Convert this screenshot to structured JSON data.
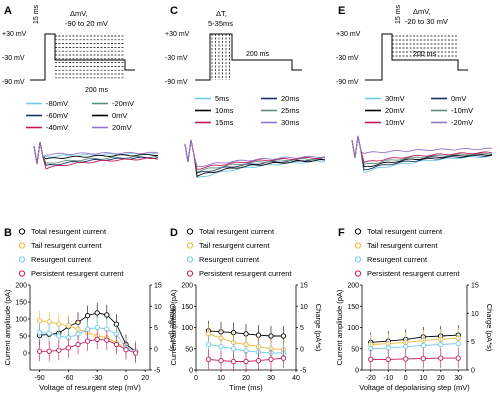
{
  "panels": {
    "A": {
      "letter": "A",
      "protocol": {
        "levels": [
          "+30 mV",
          "-30 mV",
          "-90 mV"
        ],
        "step_label": "15 ms",
        "delta_label": "ΔmV,",
        "range_label": "-90 to 20 mV",
        "duration_label": "200 ms"
      },
      "legend": [
        {
          "label": "-80mV",
          "color": "#6ecbe8"
        },
        {
          "label": "-20mV",
          "color": "#5a8f7b"
        },
        {
          "label": "-60mV",
          "color": "#1c2f6b"
        },
        {
          "label": "0mV",
          "color": "#000000"
        },
        {
          "label": "-40mV",
          "color": "#c2185b"
        },
        {
          "label": "20mV",
          "color": "#9575cd"
        }
      ]
    },
    "C": {
      "letter": "C",
      "protocol": {
        "levels": [
          "+30 mV",
          "-30 mV",
          "-90 mV"
        ],
        "delta_label": "ΔT,",
        "range_label": "5-35ms",
        "duration_label": "200 ms"
      },
      "legend": [
        {
          "label": "5ms",
          "color": "#6ecbe8"
        },
        {
          "label": "20ms",
          "color": "#1c2f6b"
        },
        {
          "label": "10ms",
          "color": "#000000"
        },
        {
          "label": "25ms",
          "color": "#5a8f7b"
        },
        {
          "label": "15ms",
          "color": "#c2185b"
        },
        {
          "label": "30ms",
          "color": "#9575cd"
        }
      ]
    },
    "E": {
      "letter": "E",
      "protocol": {
        "levels": [
          "+30 mV",
          "-30 mV",
          "-90 mV"
        ],
        "step_label": "15 ms",
        "delta_label": "ΔmV,",
        "range_label": "-20 to 30 mV",
        "duration_label": "200 ms"
      },
      "legend": [
        {
          "label": "30mV",
          "color": "#6ecbe8"
        },
        {
          "label": "0mV",
          "color": "#1c2f6b"
        },
        {
          "label": "20mV",
          "color": "#000000"
        },
        {
          "label": "-10mV",
          "color": "#5a8f7b"
        },
        {
          "label": "10mV",
          "color": "#c2185b"
        },
        {
          "label": "-20mV",
          "color": "#9575cd"
        }
      ]
    },
    "B": {
      "letter": "B"
    },
    "D": {
      "letter": "D"
    },
    "F": {
      "letter": "F"
    }
  },
  "legend_bottom": [
    {
      "label": "Total resurgent current",
      "color": "#000000"
    },
    {
      "label": "Tail resurgent current",
      "color": "#f2b632"
    },
    {
      "label": "Resurgent current",
      "color": "#6ecbe8"
    },
    {
      "label": "Persistent resurgent current",
      "color": "#c2185b"
    }
  ],
  "chart_data": [
    {
      "type": "line",
      "panel": "B",
      "xlabel": "Voltage of resurgent step (mV)",
      "ylabel": "Current amplitude (pA)",
      "y2label": "Charge (pA*s)",
      "xticks": [
        -90,
        -60,
        -30,
        0,
        20
      ],
      "yticks": [
        0,
        50,
        100,
        150,
        200
      ],
      "y2ticks": [
        -5,
        0,
        5,
        10,
        15
      ],
      "xlim": [
        -100,
        25
      ],
      "ylim": [
        -50,
        200
      ],
      "y2lim": [
        -5,
        15
      ],
      "x": [
        -90,
        -80,
        -70,
        -60,
        -50,
        -40,
        -30,
        -20,
        -10,
        0,
        10
      ],
      "series": [
        {
          "name": "Total resurgent current",
          "color": "#000000",
          "values": [
            52,
            55,
            58,
            78,
            90,
            110,
            118,
            112,
            85,
            25,
            5
          ]
        },
        {
          "name": "Tail resurgent current",
          "color": "#f2b632",
          "values": [
            95,
            92,
            85,
            80,
            70,
            60,
            50,
            45,
            30,
            15,
            5
          ]
        },
        {
          "name": "Resurgent current",
          "color": "#6ecbe8",
          "values": [
            60,
            58,
            50,
            45,
            55,
            70,
            75,
            70,
            55,
            15,
            5
          ]
        },
        {
          "name": "Persistent resurgent current",
          "color": "#c2185b",
          "values": [
            5,
            5,
            8,
            15,
            25,
            35,
            40,
            38,
            25,
            10,
            0
          ]
        }
      ]
    },
    {
      "type": "line",
      "panel": "D",
      "xlabel": "Time (ms)",
      "ylabel": "Current amplitude (pA)",
      "y2label": "Charge (pA*s)",
      "xticks": [
        0,
        10,
        20,
        30,
        40
      ],
      "yticks": [
        0,
        50,
        100,
        150,
        200
      ],
      "y2ticks": [
        -5,
        0,
        5,
        10,
        15
      ],
      "xlim": [
        0,
        40
      ],
      "ylim": [
        0,
        200
      ],
      "y2lim": [
        -5,
        15
      ],
      "x": [
        5,
        10,
        15,
        20,
        25,
        30,
        35
      ],
      "series": [
        {
          "name": "Total resurgent current",
          "color": "#000000",
          "values": [
            92,
            90,
            88,
            85,
            82,
            80,
            80
          ]
        },
        {
          "name": "Tail resurgent current",
          "color": "#f2b632",
          "values": [
            85,
            75,
            65,
            60,
            55,
            50,
            48
          ]
        },
        {
          "name": "Resurgent current",
          "color": "#6ecbe8",
          "values": [
            60,
            55,
            50,
            45,
            42,
            40,
            40
          ]
        },
        {
          "name": "Persistent resurgent current",
          "color": "#c2185b",
          "values": [
            25,
            22,
            20,
            20,
            22,
            25,
            28
          ]
        }
      ]
    },
    {
      "type": "line",
      "panel": "F",
      "xlabel": "Voltage of depolarising step (mV)",
      "ylabel": "Current amplitude (pA)",
      "y2label": "Charge (pA*s)",
      "xticks": [
        -20,
        -10,
        0,
        10,
        20,
        30
      ],
      "yticks": [
        0,
        50,
        100,
        150,
        200
      ],
      "y2ticks": [
        0,
        5,
        10,
        15
      ],
      "xlim": [
        -25,
        35
      ],
      "ylim": [
        0,
        200
      ],
      "y2lim": [
        0,
        15
      ],
      "x": [
        -20,
        -10,
        0,
        10,
        20,
        30
      ],
      "series": [
        {
          "name": "Total resurgent current",
          "color": "#000000",
          "values": [
            65,
            68,
            72,
            78,
            80,
            82
          ]
        },
        {
          "name": "Tail resurgent current",
          "color": "#f2b632",
          "values": [
            60,
            62,
            65,
            70,
            72,
            75
          ]
        },
        {
          "name": "Resurgent current",
          "color": "#6ecbe8",
          "values": [
            50,
            52,
            55,
            58,
            60,
            62
          ]
        },
        {
          "name": "Persistent resurgent current",
          "color": "#c2185b",
          "values": [
            25,
            25,
            26,
            27,
            28,
            28
          ]
        }
      ]
    }
  ]
}
